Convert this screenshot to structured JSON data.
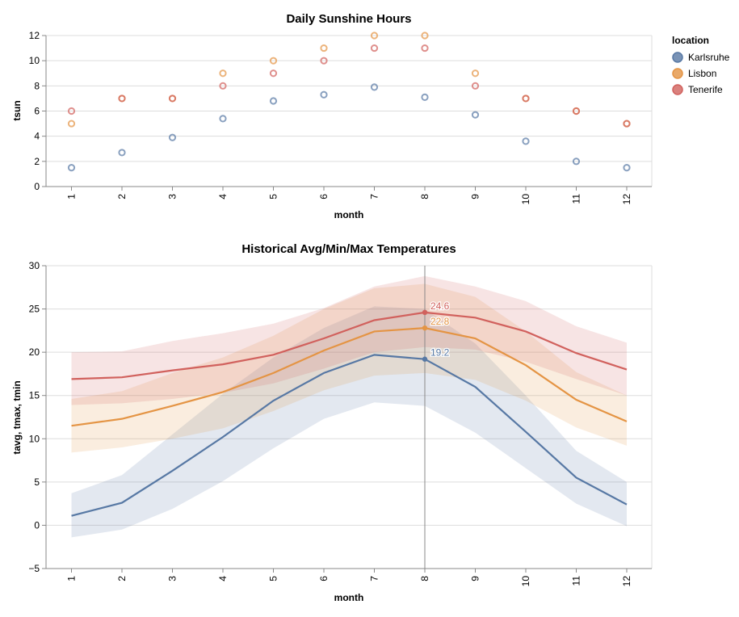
{
  "legend": {
    "title": "location",
    "items": [
      {
        "label": "Karlsruhe",
        "color": "#5778a4"
      },
      {
        "label": "Lisbon",
        "color": "#e49444"
      },
      {
        "label": "Tenerife",
        "color": "#d1615d"
      }
    ]
  },
  "chart_data": [
    {
      "type": "scatter",
      "title": "Daily Sunshine Hours",
      "xlabel": "month",
      "ylabel": "tsun",
      "x": [
        1,
        2,
        3,
        4,
        5,
        6,
        7,
        8,
        9,
        10,
        11,
        12
      ],
      "ylim": [
        0,
        12
      ],
      "y_ticks": [
        0,
        2,
        4,
        6,
        8,
        10,
        12
      ],
      "grid": true,
      "legend_position": "right",
      "series": [
        {
          "name": "Karlsruhe",
          "color": "#5778a4",
          "values": [
            1.5,
            2.7,
            3.9,
            5.4,
            6.8,
            7.3,
            7.9,
            7.1,
            5.7,
            3.6,
            2.0,
            1.5
          ]
        },
        {
          "name": "Lisbon",
          "color": "#e49444",
          "values": [
            5,
            7,
            7,
            9,
            10,
            11,
            12,
            12,
            9,
            7,
            6,
            5
          ]
        },
        {
          "name": "Tenerife",
          "color": "#d1615d",
          "values": [
            6,
            7,
            7,
            8,
            9,
            10,
            11,
            11,
            8,
            7,
            6,
            5
          ]
        }
      ]
    },
    {
      "type": "line",
      "title": "Historical Avg/Min/Max Temperatures",
      "xlabel": "month",
      "ylabel": "tavg, tmax, tmin",
      "x": [
        1,
        2,
        3,
        4,
        5,
        6,
        7,
        8,
        9,
        10,
        11,
        12
      ],
      "ylim": [
        -5,
        30
      ],
      "y_ticks": [
        -5,
        0,
        5,
        10,
        15,
        20,
        25,
        30
      ],
      "grid": true,
      "rule_x": 8,
      "series": [
        {
          "name": "Karlsruhe",
          "color": "#5778a4",
          "tavg": [
            1.1,
            2.6,
            6.3,
            10.2,
            14.4,
            17.6,
            19.7,
            19.2,
            16.0,
            10.8,
            5.5,
            2.4
          ],
          "tmin": [
            -1.4,
            -0.5,
            1.9,
            5.1,
            8.9,
            12.3,
            14.2,
            13.8,
            10.7,
            6.6,
            2.5,
            -0.1
          ],
          "tmax": [
            3.7,
            5.8,
            10.5,
            15.2,
            19.4,
            22.8,
            25.3,
            25.0,
            21.0,
            15.0,
            8.6,
            5.0
          ],
          "label_value": "19.2"
        },
        {
          "name": "Lisbon",
          "color": "#e49444",
          "tavg": [
            11.5,
            12.3,
            13.8,
            15.4,
            17.6,
            20.2,
            22.4,
            22.8,
            21.6,
            18.5,
            14.5,
            12.0
          ],
          "tmin": [
            8.4,
            9.0,
            10.0,
            11.2,
            13.2,
            15.6,
            17.3,
            17.6,
            16.8,
            14.4,
            11.3,
            9.2
          ],
          "tmax": [
            14.6,
            15.5,
            17.6,
            19.4,
            21.9,
            25.0,
            27.4,
            27.9,
            26.4,
            22.4,
            17.7,
            15.0
          ],
          "label_value": "22.8"
        },
        {
          "name": "Tenerife",
          "color": "#d1615d",
          "tavg": [
            16.9,
            17.1,
            17.9,
            18.6,
            19.7,
            21.6,
            23.7,
            24.6,
            24.0,
            22.4,
            19.9,
            18.0
          ],
          "tmin": [
            13.9,
            14.1,
            14.6,
            15.3,
            16.4,
            18.1,
            20.0,
            20.6,
            20.3,
            18.9,
            16.9,
            15.0
          ],
          "tmax": [
            20.0,
            20.1,
            21.3,
            22.2,
            23.3,
            25.1,
            27.6,
            28.8,
            27.6,
            25.9,
            23.0,
            21.1
          ],
          "label_value": "24.6"
        }
      ]
    }
  ]
}
